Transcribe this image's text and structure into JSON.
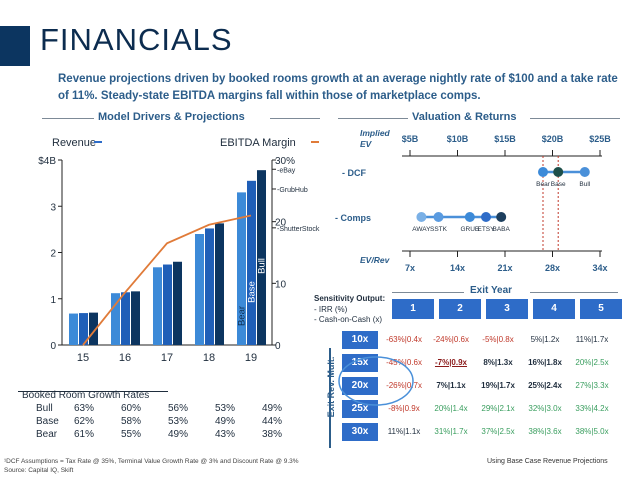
{
  "title": "FINANCIALS",
  "subtitle": "Revenue projections driven by booked rooms growth at an average nightly rate of $100 and a take rate of 11%. Steady-state EBITDA margins fall within those of marketplace comps.",
  "sections": {
    "left": "Model Drivers & Projections",
    "right": "Valuation & Returns"
  },
  "colors": {
    "navy": "#0c3560",
    "dark_blue": "#1f4e9a",
    "mid_blue": "#2e6cc8",
    "light_blue": "#4a90d9",
    "orange": "#e07b39",
    "teal": "#3a9e5f",
    "red": "#c0392b",
    "dark_red": "#8b1a1a"
  },
  "left_chart_labels": {
    "revenue": "Revenue",
    "ebitda": "EBITDA Margin",
    "y_left_ticks": [
      "0",
      "1",
      "2",
      "3",
      "$4B"
    ],
    "y_right_ticks": [
      "0",
      "10",
      "20",
      "30%"
    ],
    "comps": [
      "eBay",
      "GrubHub",
      "ShutterStock"
    ],
    "bar_labels": [
      "Bear",
      "Base",
      "Bull"
    ]
  },
  "chart_data": [
    {
      "type": "bar",
      "categories": [
        "15",
        "16",
        "17",
        "18",
        "19"
      ],
      "series": [
        {
          "name": "Bear",
          "values": [
            0.68,
            1.12,
            1.68,
            2.4,
            3.3
          ]
        },
        {
          "name": "Base",
          "values": [
            0.69,
            1.14,
            1.74,
            2.52,
            3.55
          ]
        },
        {
          "name": "Bull",
          "values": [
            0.7,
            1.16,
            1.8,
            2.63,
            3.78
          ]
        }
      ],
      "line": {
        "name": "EBITDA Margin",
        "values": [
          0,
          8.5,
          16.5,
          19.5,
          21
        ]
      },
      "ylim": [
        0,
        4
      ],
      "y2lim": [
        0,
        30
      ],
      "comp_margins": {
        "eBay": 28.5,
        "GrubHub": 25.3,
        "ShutterStock": 19
      }
    }
  ],
  "growth_table": {
    "title": "Booked Room Growth Rates",
    "rows": [
      {
        "label": "Bull",
        "values": [
          "63%",
          "60%",
          "56%",
          "53%",
          "49%"
        ]
      },
      {
        "label": "Base",
        "values": [
          "62%",
          "58%",
          "53%",
          "49%",
          "44%"
        ]
      },
      {
        "label": "Bear",
        "values": [
          "61%",
          "55%",
          "49%",
          "43%",
          "38%"
        ]
      }
    ]
  },
  "valuation": {
    "implied_ev": "Implied EV",
    "ev_ticks": [
      "$5B",
      "$10B",
      "$15B",
      "$20B",
      "$25B"
    ],
    "ev_rev": "EV/Rev",
    "rev_ticks": [
      "7x",
      "14x",
      "21x",
      "28x",
      "34x"
    ],
    "dcf_label": "- DCF",
    "comps_label": "- Comps",
    "dcf_points": [
      {
        "label": "Bear",
        "ev": 19.0
      },
      {
        "label": "Base",
        "ev": 20.6
      },
      {
        "label": "Bull",
        "ev": 23.4
      }
    ],
    "comps_points": [
      {
        "label": "AWAY",
        "ev": 6.2
      },
      {
        "label": "SSTK",
        "ev": 8.0
      },
      {
        "label": "GRUB",
        "ev": 11.3
      },
      {
        "label": "ETSY",
        "ev": 13.0
      },
      {
        "label": "BABA",
        "ev": 14.6
      }
    ]
  },
  "sensitivity": {
    "title": "Sensitivity Output:",
    "lines": [
      "- IRR (%)",
      "- Cash-on-Cash (x)"
    ],
    "exit_year": "Exit Year",
    "years": [
      "1",
      "2",
      "3",
      "4",
      "5"
    ],
    "mult_label": "Exit Rev. Mult.",
    "rows": [
      {
        "mult": "10x",
        "cells": [
          "-63%|0.4x",
          "-24%|0.6x",
          "-5%|0.8x",
          "5%|1.2x",
          "11%|1.7x"
        ]
      },
      {
        "mult": "15x",
        "cells": [
          "-45%|0.6x",
          "-7%|0.9x",
          "8%|1.3x",
          "16%|1.8x",
          "20%|2.5x"
        ]
      },
      {
        "mult": "20x",
        "cells": [
          "-26%|0.7x",
          "7%|1.1x",
          "19%|1.7x",
          "25%|2.4x",
          "27%|3.3x"
        ]
      },
      {
        "mult": "25x",
        "cells": [
          "-8%|0.9x",
          "20%|1.4x",
          "29%|2.1x",
          "32%|3.0x",
          "33%|4.2x"
        ]
      },
      {
        "mult": "30x",
        "cells": [
          "11%|1.1x",
          "31%|1.7x",
          "37%|2.5x",
          "38%|3.6x",
          "38%|5.0x"
        ]
      }
    ],
    "note": "Using Base Case Revenue Projections"
  },
  "footer": {
    "line1": "¹DCF Assumptions = Tax Rate @ 35%, Terminal Value Growth Rate @ 3% and Discount Rate @ 9.3%",
    "line2": "Source: Capital IQ, Skift"
  }
}
